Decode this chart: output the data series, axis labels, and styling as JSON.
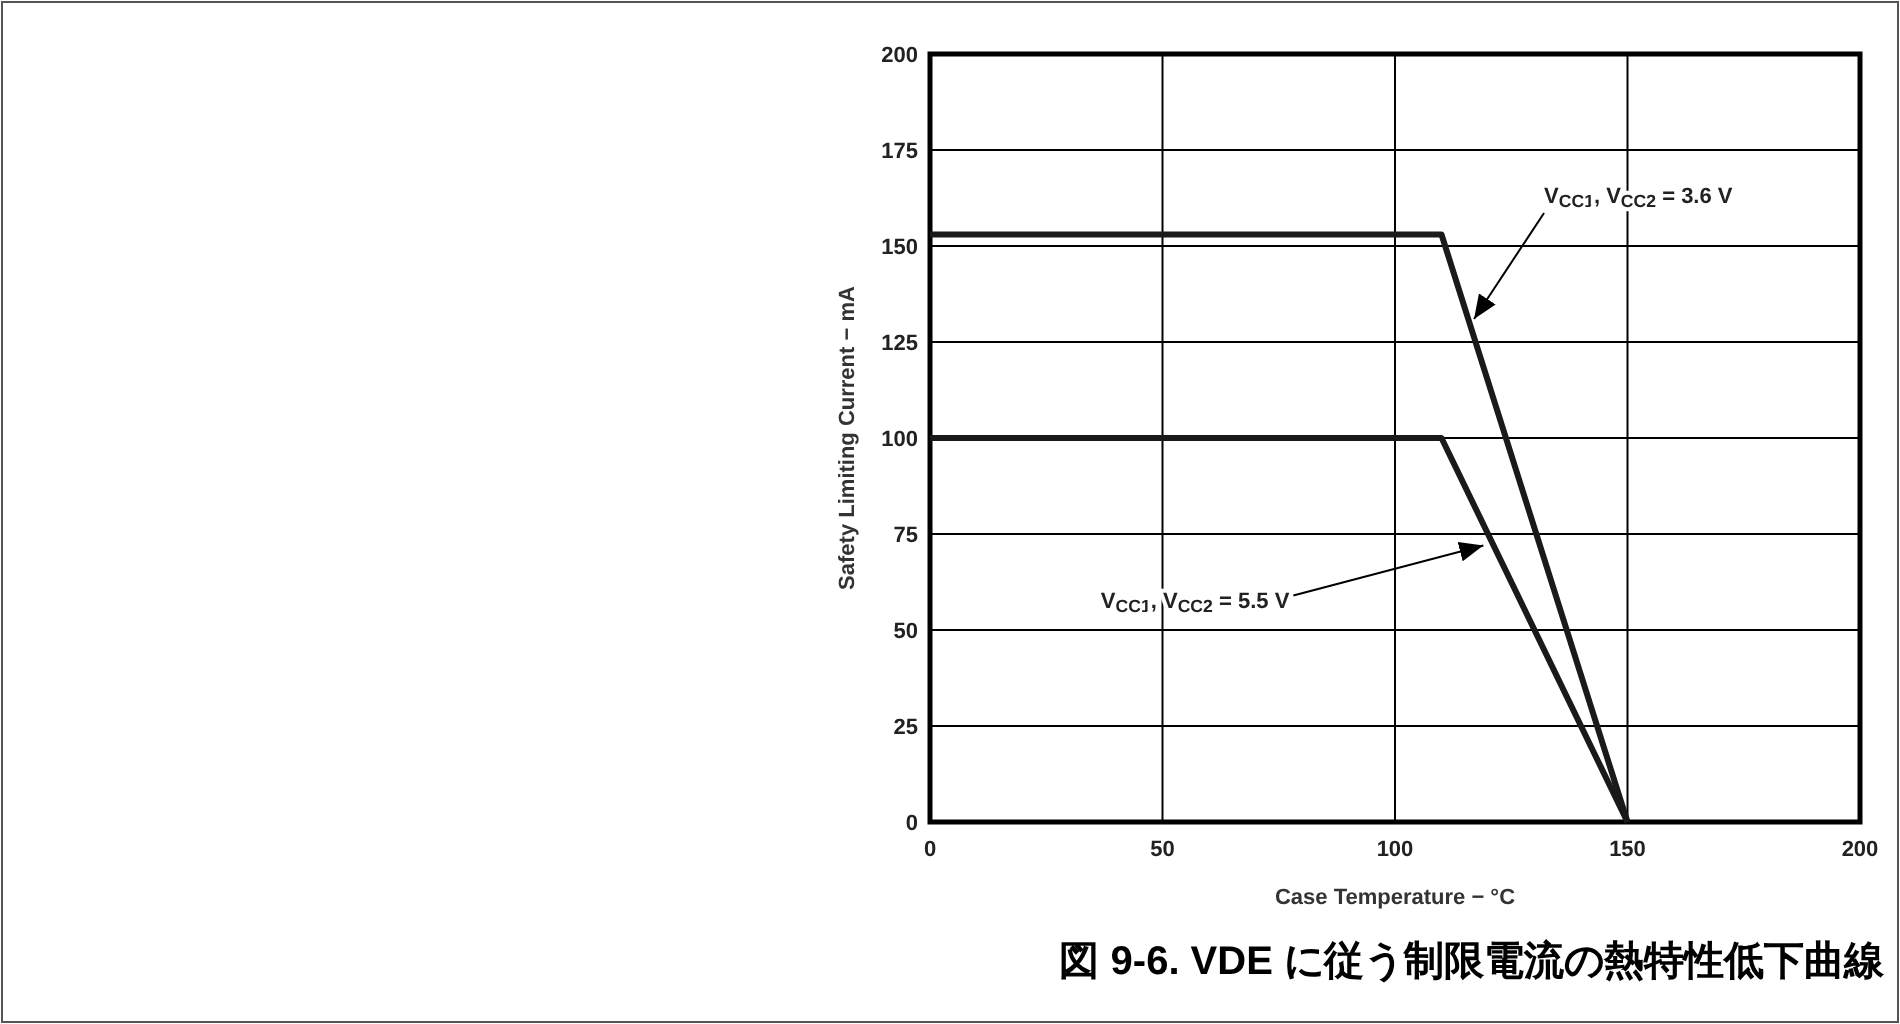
{
  "chart_data": {
    "type": "line",
    "title": "図 9-6. VDE に従う制限電流の熱特性低下曲線",
    "xlabel": "Case Temperature  − °C",
    "ylabel": "Safety Limiting Current − mA",
    "x": [
      0,
      110,
      150
    ],
    "series": [
      {
        "color": "#1a1a1a",
        "values": [
          153,
          153,
          0
        ]
      },
      {
        "color": "#1a1a1a",
        "values": [
          100,
          100,
          0
        ]
      }
    ],
    "annotations": [
      {
        "text": "V$_{CC1}$, V$_{CC2}$ = 3.6 V",
        "x": 117,
        "y": 131
      },
      {
        "text": "V$_{CC1}$, V$_{CC2}$ = 5.5 V",
        "x": 119,
        "y": 72
      }
    ],
    "xlim": [
      0,
      200
    ],
    "ylim": [
      0,
      200
    ],
    "xticks": [
      0,
      50,
      100,
      150,
      200
    ],
    "yticks": [
      0,
      25,
      50,
      75,
      100,
      125,
      150,
      175,
      200
    ],
    "grid": true,
    "marker": "none",
    "line_style": "solid"
  }
}
